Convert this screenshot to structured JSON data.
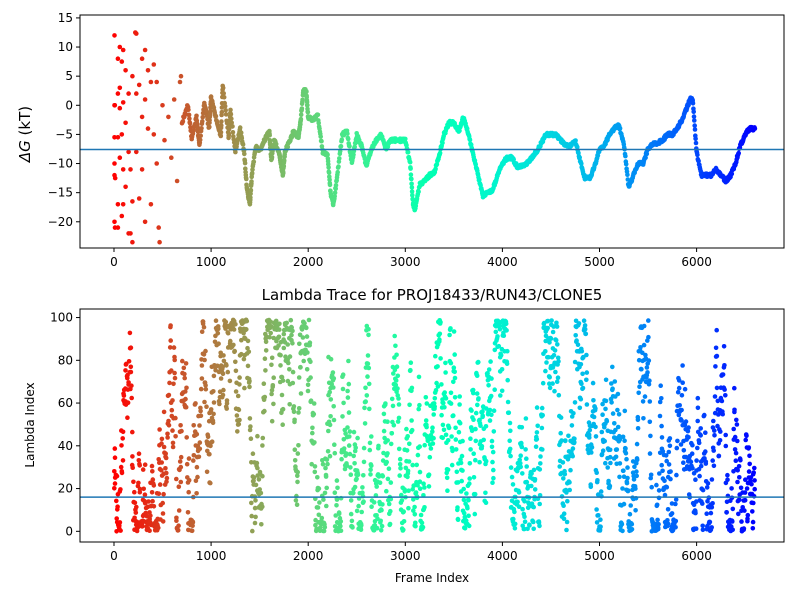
{
  "chart_data": [
    {
      "type": "scatter",
      "title": "",
      "xlabel": "",
      "ylabel": "ΔG (kT)",
      "ylabel_symbol": "ΔG",
      "ylabel_unit": " (kT)",
      "xlim": [
        -350,
        6900
      ],
      "ylim": [
        -24.5,
        15.5
      ],
      "xticks": [
        0,
        1000,
        2000,
        3000,
        4000,
        5000,
        6000
      ],
      "yticks": [
        -20,
        -15,
        -10,
        -5,
        0,
        5,
        10,
        15
      ],
      "ytick_labels": [
        "−20",
        "−15",
        "−10",
        "−5",
        "0",
        "5",
        "10",
        "15"
      ],
      "hline": -7.6,
      "hline_color": "#1f77b4",
      "colormap": "rainbow (reversed along frame index)",
      "grid": false,
      "n_frames": 6600,
      "early_points": [
        [
          5,
          12
        ],
        [
          5,
          0
        ],
        [
          5,
          -10
        ],
        [
          5,
          -12
        ],
        [
          5,
          -20
        ],
        [
          5,
          -5.5
        ],
        [
          8,
          0
        ],
        [
          10,
          -21
        ],
        [
          12,
          -12.5
        ],
        [
          40,
          8
        ],
        [
          40,
          2
        ],
        [
          40,
          -5.5
        ],
        [
          40,
          -17
        ],
        [
          40,
          -21
        ],
        [
          60,
          10
        ],
        [
          60,
          3
        ],
        [
          60,
          -0.5
        ],
        [
          60,
          -9
        ],
        [
          80,
          7.5
        ],
        [
          80,
          -5
        ],
        [
          80,
          -19
        ],
        [
          95,
          9.5
        ],
        [
          95,
          0.5
        ],
        [
          95,
          -11
        ],
        [
          95,
          -17
        ],
        [
          120,
          6
        ],
        [
          120,
          -3
        ],
        [
          120,
          -14
        ],
        [
          150,
          2
        ],
        [
          150,
          -8
        ],
        [
          150,
          -22
        ],
        [
          170,
          -11
        ],
        [
          170,
          -22
        ],
        [
          190,
          5
        ],
        [
          190,
          -16.5
        ],
        [
          190,
          -23.5
        ],
        [
          220,
          12.5
        ],
        [
          230,
          12.3
        ],
        [
          230,
          2
        ],
        [
          230,
          -8
        ],
        [
          260,
          3.5
        ],
        [
          260,
          -16
        ],
        [
          290,
          8
        ],
        [
          290,
          -2
        ],
        [
          290,
          -11
        ],
        [
          320,
          9.5
        ],
        [
          320,
          1
        ],
        [
          320,
          -20
        ],
        [
          350,
          6
        ],
        [
          350,
          -4
        ],
        [
          380,
          4
        ],
        [
          380,
          -17
        ],
        [
          410,
          7
        ],
        [
          410,
          -5
        ],
        [
          440,
          4
        ],
        [
          440,
          -10
        ],
        [
          460,
          -21
        ],
        [
          470,
          -23.5
        ],
        [
          500,
          0
        ],
        [
          520,
          -6
        ],
        [
          560,
          -2
        ],
        [
          590,
          -9
        ],
        [
          620,
          1
        ],
        [
          650,
          -13
        ],
        [
          680,
          4
        ],
        [
          690,
          5
        ]
      ],
      "main_trace": [
        [
          700,
          -3
        ],
        [
          760,
          0
        ],
        [
          800,
          -5.5
        ],
        [
          850,
          -2
        ],
        [
          880,
          -7
        ],
        [
          930,
          0.5
        ],
        [
          980,
          -4
        ],
        [
          1000,
          1.5
        ],
        [
          1050,
          -2
        ],
        [
          1100,
          -5.5
        ],
        [
          1120,
          3.5
        ],
        [
          1180,
          -5.5
        ],
        [
          1200,
          -1
        ],
        [
          1250,
          -8
        ],
        [
          1300,
          -4
        ],
        [
          1340,
          -8
        ],
        [
          1370,
          -14.5
        ],
        [
          1400,
          -17
        ],
        [
          1420,
          -12
        ],
        [
          1460,
          -7
        ],
        [
          1500,
          -8
        ],
        [
          1550,
          -6
        ],
        [
          1600,
          -4.5
        ],
        [
          1620,
          -9.5
        ],
        [
          1650,
          -6
        ],
        [
          1700,
          -8
        ],
        [
          1720,
          -10
        ],
        [
          1740,
          -12
        ],
        [
          1760,
          -8
        ],
        [
          1800,
          -6.5
        ],
        [
          1850,
          -4.5
        ],
        [
          1900,
          -5.5
        ],
        [
          1920,
          -3
        ],
        [
          1950,
          2.5
        ],
        [
          1980,
          2.5
        ],
        [
          2000,
          -2
        ],
        [
          2050,
          -2.5
        ],
        [
          2100,
          -1.8
        ],
        [
          2150,
          -8
        ],
        [
          2200,
          -8.5
        ],
        [
          2230,
          -15
        ],
        [
          2260,
          -17
        ],
        [
          2300,
          -12
        ],
        [
          2350,
          -5
        ],
        [
          2400,
          -4.5
        ],
        [
          2450,
          -10
        ],
        [
          2500,
          -5
        ],
        [
          2550,
          -7
        ],
        [
          2600,
          -10.5
        ],
        [
          2650,
          -7.5
        ],
        [
          2700,
          -6
        ],
        [
          2750,
          -5
        ],
        [
          2800,
          -7.5
        ],
        [
          2850,
          -6
        ],
        [
          2900,
          -6
        ],
        [
          2950,
          -6
        ],
        [
          3000,
          -6
        ],
        [
          3050,
          -10
        ],
        [
          3080,
          -17
        ],
        [
          3100,
          -18
        ],
        [
          3150,
          -13.5
        ],
        [
          3200,
          -13
        ],
        [
          3250,
          -12
        ],
        [
          3300,
          -11.5
        ],
        [
          3350,
          -8.5
        ],
        [
          3400,
          -5
        ],
        [
          3450,
          -3
        ],
        [
          3500,
          -3
        ],
        [
          3550,
          -4.5
        ],
        [
          3600,
          -2
        ],
        [
          3650,
          -5
        ],
        [
          3700,
          -8.5
        ],
        [
          3750,
          -12
        ],
        [
          3800,
          -15.5
        ],
        [
          3850,
          -15
        ],
        [
          3900,
          -14.5
        ],
        [
          3950,
          -12
        ],
        [
          4000,
          -10
        ],
        [
          4050,
          -9
        ],
        [
          4100,
          -9
        ],
        [
          4150,
          -10.5
        ],
        [
          4200,
          -10.5
        ],
        [
          4250,
          -10
        ],
        [
          4300,
          -9
        ],
        [
          4350,
          -8
        ],
        [
          4400,
          -6.5
        ],
        [
          4450,
          -5
        ],
        [
          4500,
          -5
        ],
        [
          4550,
          -5
        ],
        [
          4600,
          -6
        ],
        [
          4650,
          -7
        ],
        [
          4700,
          -7
        ],
        [
          4750,
          -6
        ],
        [
          4800,
          -9.5
        ],
        [
          4850,
          -12.5
        ],
        [
          4900,
          -12.5
        ],
        [
          4950,
          -10.5
        ],
        [
          5000,
          -7.5
        ],
        [
          5050,
          -7
        ],
        [
          5100,
          -5
        ],
        [
          5150,
          -4
        ],
        [
          5200,
          -3.5
        ],
        [
          5250,
          -6.5
        ],
        [
          5300,
          -14
        ],
        [
          5350,
          -12
        ],
        [
          5400,
          -10
        ],
        [
          5450,
          -10
        ],
        [
          5500,
          -7.5
        ],
        [
          5550,
          -6.5
        ],
        [
          5600,
          -6.5
        ],
        [
          5650,
          -6
        ],
        [
          5700,
          -5
        ],
        [
          5750,
          -5
        ],
        [
          5800,
          -4
        ],
        [
          5850,
          -2.5
        ],
        [
          5900,
          -0.5
        ],
        [
          5930,
          1
        ],
        [
          5960,
          1
        ],
        [
          6000,
          -8
        ],
        [
          6050,
          -12
        ],
        [
          6100,
          -12
        ],
        [
          6150,
          -12
        ],
        [
          6200,
          -11
        ],
        [
          6250,
          -12
        ],
        [
          6300,
          -13
        ],
        [
          6350,
          -12
        ],
        [
          6400,
          -10
        ],
        [
          6450,
          -7
        ],
        [
          6500,
          -5
        ],
        [
          6550,
          -4
        ],
        [
          6600,
          -4
        ]
      ]
    },
    {
      "type": "scatter",
      "title": "Lambda Trace for PROJ18433/RUN43/CLONE5",
      "xlabel": "Frame Index",
      "ylabel": "Lambda Index",
      "xlim": [
        -350,
        6900
      ],
      "ylim": [
        -5,
        104
      ],
      "xticks": [
        0,
        1000,
        2000,
        3000,
        4000,
        5000,
        6000
      ],
      "yticks": [
        0,
        20,
        40,
        60,
        80,
        100
      ],
      "hline": 16,
      "hline_color": "#1f77b4",
      "colormap": "rainbow (reversed along frame index)",
      "grid": false,
      "n_frames": 6600,
      "description_note": "",
      "lambda_range": [
        0,
        99
      ]
    }
  ]
}
